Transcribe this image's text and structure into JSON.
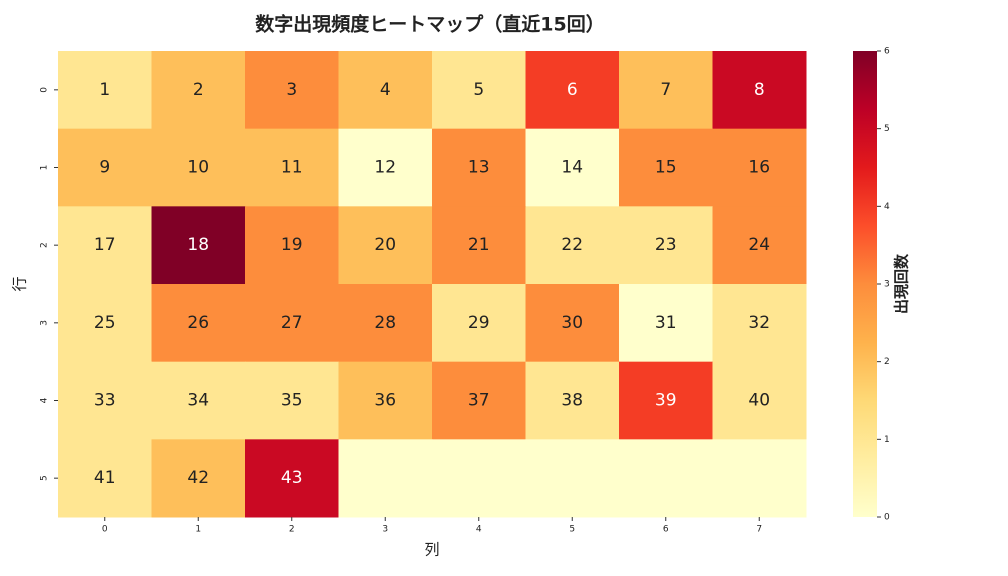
{
  "chart_data": {
    "type": "heatmap",
    "title": "数字出現頻度ヒートマップ（直近15回）",
    "xlabel": "列",
    "ylabel": "行",
    "colorbar_label": "出現回数",
    "colormap": "YlOrRd",
    "x_categories": [
      0,
      1,
      2,
      3,
      4,
      5,
      6,
      7
    ],
    "y_categories": [
      0,
      1,
      2,
      3,
      4,
      5
    ],
    "values": [
      [
        1,
        2,
        3,
        2,
        1,
        4,
        2,
        5
      ],
      [
        2,
        2,
        2,
        0,
        3,
        0,
        3,
        3
      ],
      [
        1,
        6,
        3,
        2,
        3,
        1,
        1,
        3
      ],
      [
        1,
        3,
        3,
        3,
        1,
        3,
        0,
        1
      ],
      [
        1,
        1,
        1,
        2,
        3,
        1,
        4,
        1
      ],
      [
        1,
        2,
        5,
        0,
        0,
        0,
        0,
        0
      ]
    ],
    "annotations": [
      [
        1,
        2,
        3,
        4,
        5,
        6,
        7,
        8
      ],
      [
        9,
        10,
        11,
        12,
        13,
        14,
        15,
        16
      ],
      [
        17,
        18,
        19,
        20,
        21,
        22,
        23,
        24
      ],
      [
        25,
        26,
        27,
        28,
        29,
        30,
        31,
        32
      ],
      [
        33,
        34,
        35,
        36,
        37,
        38,
        39,
        40
      ],
      [
        41,
        42,
        43,
        null,
        null,
        null,
        null,
        null
      ]
    ],
    "clim": [
      0,
      6
    ],
    "cticks": [
      0,
      1,
      2,
      3,
      4,
      5,
      6
    ]
  }
}
